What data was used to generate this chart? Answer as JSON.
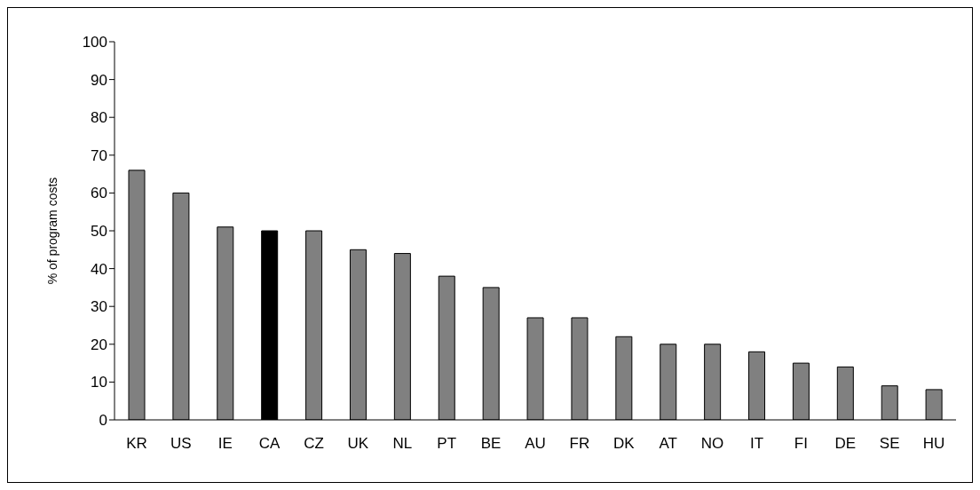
{
  "chart_data": {
    "type": "bar",
    "ylabel": "% of program costs",
    "categories": [
      "KR",
      "US",
      "IE",
      "CA",
      "CZ",
      "UK",
      "NL",
      "PT",
      "BE",
      "AU",
      "FR",
      "DK",
      "AT",
      "NO",
      "IT",
      "FI",
      "DE",
      "SE",
      "HU"
    ],
    "values": [
      66,
      60,
      51,
      50,
      50,
      45,
      44,
      38,
      35,
      27,
      27,
      22,
      20,
      20,
      18,
      15,
      14,
      9,
      8
    ],
    "colors": [
      "#808080",
      "#808080",
      "#808080",
      "#000000",
      "#808080",
      "#808080",
      "#808080",
      "#808080",
      "#808080",
      "#808080",
      "#808080",
      "#808080",
      "#808080",
      "#808080",
      "#808080",
      "#808080",
      "#808080",
      "#808080",
      "#808080"
    ],
    "ylim": [
      0,
      100
    ],
    "yticks": [
      0,
      10,
      20,
      30,
      40,
      50,
      60,
      70,
      80,
      90,
      100
    ],
    "grid": false,
    "legend": false
  }
}
